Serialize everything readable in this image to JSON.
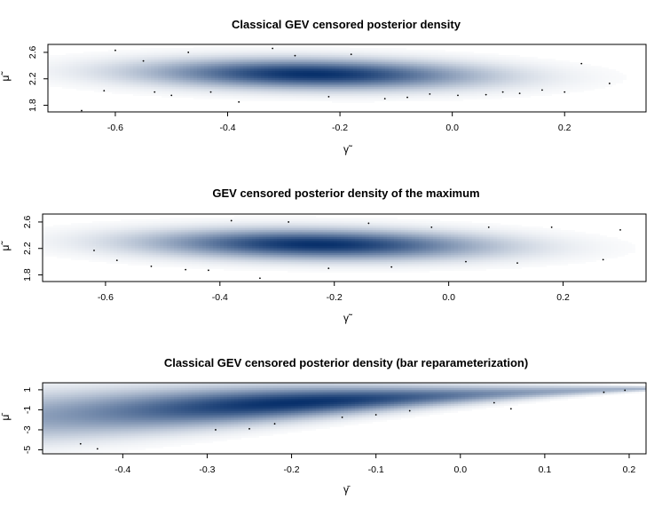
{
  "chart_data": [
    {
      "type": "heatmap",
      "title": "Classical GEV censored posterior density",
      "xlabel": "γ̃",
      "ylabel": "μ̃",
      "xlim": [
        -0.72,
        0.345
      ],
      "ylim": [
        1.7,
        2.72
      ],
      "xticks": [
        -0.6,
        -0.4,
        -0.2,
        0.0,
        0.2
      ],
      "xtick_labels": [
        "-0.6",
        "-0.4",
        "-0.2",
        "0.0",
        "0.2"
      ],
      "yticks": [
        1.8,
        2.2,
        2.6
      ],
      "ytick_labels": [
        "1.8",
        "2.2",
        "2.6"
      ],
      "density": {
        "type": "bivariate-normal",
        "mean_x": -0.25,
        "mean_y": 2.27,
        "sd_x": 0.2,
        "sd_y": 0.15,
        "slope": -0.1
      },
      "scatter_points": [
        {
          "x": -0.66,
          "y": 1.72
        },
        {
          "x": -0.62,
          "y": 2.02
        },
        {
          "x": -0.6,
          "y": 2.63
        },
        {
          "x": -0.55,
          "y": 2.47
        },
        {
          "x": -0.53,
          "y": 2.0
        },
        {
          "x": -0.5,
          "y": 1.95
        },
        {
          "x": -0.47,
          "y": 2.6
        },
        {
          "x": -0.43,
          "y": 2.0
        },
        {
          "x": -0.38,
          "y": 1.85
        },
        {
          "x": -0.32,
          "y": 2.66
        },
        {
          "x": -0.28,
          "y": 2.55
        },
        {
          "x": -0.22,
          "y": 1.93
        },
        {
          "x": -0.18,
          "y": 2.57
        },
        {
          "x": -0.12,
          "y": 1.9
        },
        {
          "x": -0.08,
          "y": 1.92
        },
        {
          "x": -0.04,
          "y": 1.97
        },
        {
          "x": 0.01,
          "y": 1.95
        },
        {
          "x": 0.06,
          "y": 1.96
        },
        {
          "x": 0.09,
          "y": 2.0
        },
        {
          "x": 0.12,
          "y": 1.98
        },
        {
          "x": 0.16,
          "y": 2.03
        },
        {
          "x": 0.2,
          "y": 2.0
        },
        {
          "x": 0.23,
          "y": 2.43
        },
        {
          "x": 0.28,
          "y": 2.13
        }
      ]
    },
    {
      "type": "heatmap",
      "title": "GEV censored posterior density of the maximum",
      "xlabel": "γ̃",
      "ylabel": "μ̃",
      "xlim": [
        -0.71,
        0.345
      ],
      "ylim": [
        1.7,
        2.72
      ],
      "xticks": [
        -0.6,
        -0.4,
        -0.2,
        0.0,
        0.2
      ],
      "xtick_labels": [
        "-0.6",
        "-0.4",
        "-0.2",
        "0.0",
        "0.2"
      ],
      "yticks": [
        1.8,
        2.2,
        2.6
      ],
      "ytick_labels": [
        "1.8",
        "2.2",
        "2.6"
      ],
      "density": {
        "type": "bivariate-normal",
        "mean_x": -0.23,
        "mean_y": 2.26,
        "sd_x": 0.2,
        "sd_y": 0.15,
        "slope": -0.1
      },
      "scatter_points": [
        {
          "x": -0.62,
          "y": 2.17
        },
        {
          "x": -0.58,
          "y": 2.02
        },
        {
          "x": -0.52,
          "y": 1.93
        },
        {
          "x": -0.46,
          "y": 1.88
        },
        {
          "x": -0.42,
          "y": 1.87
        },
        {
          "x": -0.38,
          "y": 2.62
        },
        {
          "x": -0.33,
          "y": 1.75
        },
        {
          "x": -0.28,
          "y": 2.6
        },
        {
          "x": -0.21,
          "y": 1.9
        },
        {
          "x": -0.14,
          "y": 2.58
        },
        {
          "x": -0.1,
          "y": 1.92
        },
        {
          "x": -0.03,
          "y": 2.52
        },
        {
          "x": 0.03,
          "y": 2.0
        },
        {
          "x": 0.07,
          "y": 2.52
        },
        {
          "x": 0.12,
          "y": 1.98
        },
        {
          "x": 0.18,
          "y": 2.52
        },
        {
          "x": 0.27,
          "y": 2.03
        },
        {
          "x": 0.3,
          "y": 2.48
        }
      ]
    },
    {
      "type": "heatmap",
      "title": "Classical GEV censored posterior density (bar reparameterization)",
      "xlabel": "γ̄",
      "ylabel": "μ̄",
      "xlim": [
        -0.495,
        0.22
      ],
      "ylim": [
        -5.4,
        1.7
      ],
      "xticks": [
        -0.4,
        -0.3,
        -0.2,
        -0.1,
        0.0,
        0.1,
        0.2
      ],
      "xtick_labels": [
        "-0.4",
        "-0.3",
        "-0.2",
        "-0.1",
        "0.0",
        "0.1",
        "0.2"
      ],
      "yticks": [
        -5,
        -3,
        -1,
        1
      ],
      "ytick_labels": [
        "-5",
        "-3",
        "-1",
        "1"
      ],
      "density": {
        "type": "curved-ridge",
        "ridge_y": "1.1 - 4.16*(0.22 - x)^1.25",
        "sd_x": 0.16,
        "mean_x": -0.2
      },
      "scatter_points": [
        {
          "x": -0.45,
          "y": -4.4
        },
        {
          "x": -0.43,
          "y": -4.9
        },
        {
          "x": -0.29,
          "y": -3.0
        },
        {
          "x": -0.25,
          "y": -2.9
        },
        {
          "x": -0.22,
          "y": -2.4
        },
        {
          "x": -0.14,
          "y": -1.75
        },
        {
          "x": -0.1,
          "y": -1.5
        },
        {
          "x": -0.06,
          "y": -1.1
        },
        {
          "x": 0.04,
          "y": -0.3
        },
        {
          "x": 0.06,
          "y": -0.9
        },
        {
          "x": 0.17,
          "y": 0.75
        },
        {
          "x": 0.195,
          "y": 0.95
        }
      ]
    }
  ]
}
